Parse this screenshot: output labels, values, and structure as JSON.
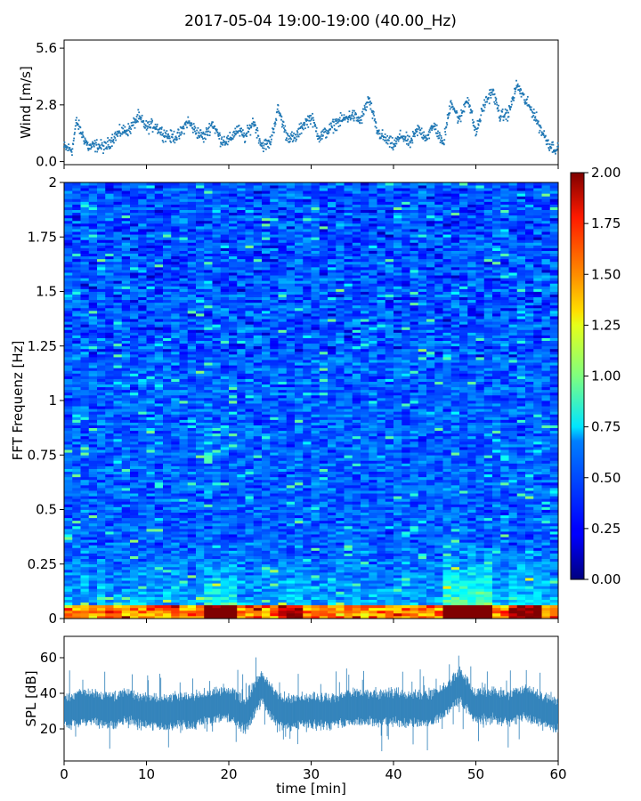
{
  "figure": {
    "title": "2017-05-04 19:00-19:00 (40.00_Hz)"
  },
  "chart_data": [
    {
      "id": "wind",
      "type": "scatter",
      "ylabel": "Wind [m/s]",
      "ylim": [
        -0.15,
        6.0
      ],
      "yticks": [
        "0.0",
        "2.8",
        "5.6"
      ],
      "ytick_values": [
        0.0,
        2.8,
        5.6
      ],
      "xlim": [
        0,
        60
      ],
      "color": "#1f77b4",
      "series": [
        {
          "x": [
            0,
            1,
            1.5,
            2,
            3,
            4,
            5,
            6,
            7,
            8,
            9,
            10,
            11,
            12,
            13,
            14,
            15,
            16,
            17,
            18,
            19,
            20,
            21,
            22,
            23,
            24,
            25,
            26,
            27,
            28,
            29,
            30,
            31,
            32,
            33,
            34,
            35,
            36,
            37,
            38,
            39,
            40,
            41,
            42,
            43,
            44,
            45,
            46,
            47,
            48,
            49,
            50,
            51,
            52,
            53,
            54,
            55,
            56,
            57,
            58,
            59,
            60
          ],
          "y": [
            0.7,
            0.6,
            2.0,
            1.5,
            0.7,
            0.8,
            0.7,
            1.2,
            1.5,
            1.6,
            2.2,
            1.7,
            1.8,
            1.4,
            1.2,
            1.3,
            2.0,
            1.5,
            1.2,
            1.9,
            1.1,
            1.0,
            1.6,
            1.2,
            2.0,
            0.8,
            0.9,
            2.6,
            1.3,
            1.1,
            1.8,
            2.2,
            1.2,
            1.5,
            1.9,
            2.1,
            2.3,
            2.0,
            3.1,
            1.5,
            1.1,
            0.8,
            1.3,
            0.9,
            1.6,
            1.2,
            1.8,
            0.8,
            3.0,
            2.0,
            3.2,
            1.4,
            2.8,
            3.5,
            2.2,
            2.4,
            3.8,
            3.0,
            2.4,
            1.5,
            0.8,
            0.6
          ]
        }
      ]
    },
    {
      "id": "spectrogram",
      "type": "heatmap",
      "ylabel": "FFT Frequenz [Hz]",
      "ylim": [
        0,
        2
      ],
      "yticks": [
        "0",
        "0.25",
        "0.5",
        "0.75",
        "1",
        "1.25",
        "1.5",
        "1.75",
        "2"
      ],
      "ytick_values": [
        0,
        0.25,
        0.5,
        0.75,
        1,
        1.25,
        1.5,
        1.75,
        2
      ],
      "xlim": [
        0,
        60
      ],
      "colorbar": {
        "colormap": "jet",
        "range": [
          0.0,
          2.0
        ],
        "ticks": [
          "0.00",
          "0.25",
          "0.50",
          "0.75",
          "1.00",
          "1.25",
          "1.50",
          "1.75",
          "2.00"
        ],
        "tick_values": [
          0,
          0.25,
          0.5,
          0.75,
          1.0,
          1.25,
          1.5,
          1.75,
          2.0
        ]
      }
    },
    {
      "id": "spl",
      "type": "area",
      "ylabel": "SPL [dB]",
      "xlabel": "time [min]",
      "ylim": [
        2,
        72
      ],
      "yticks": [
        "20",
        "40",
        "60"
      ],
      "ytick_values": [
        20,
        40,
        60
      ],
      "xlim": [
        0,
        60
      ],
      "xticks": [
        "0",
        "10",
        "20",
        "30",
        "40",
        "50",
        "60"
      ],
      "xtick_values": [
        0,
        10,
        20,
        30,
        40,
        50,
        60
      ],
      "color": "#1f77b4",
      "series": [
        {
          "x": [
            0,
            2,
            4,
            6,
            8,
            10,
            12,
            14,
            16,
            18,
            20,
            22,
            24,
            26,
            28,
            30,
            32,
            34,
            36,
            38,
            40,
            42,
            44,
            46,
            48,
            50,
            52,
            54,
            56,
            58,
            60
          ],
          "y": [
            30,
            33,
            32,
            31,
            33,
            30,
            30,
            31,
            31,
            33,
            35,
            28,
            44,
            30,
            30,
            31,
            30,
            32,
            33,
            32,
            33,
            32,
            32,
            35,
            45,
            33,
            34,
            32,
            36,
            31,
            29
          ]
        }
      ]
    }
  ]
}
